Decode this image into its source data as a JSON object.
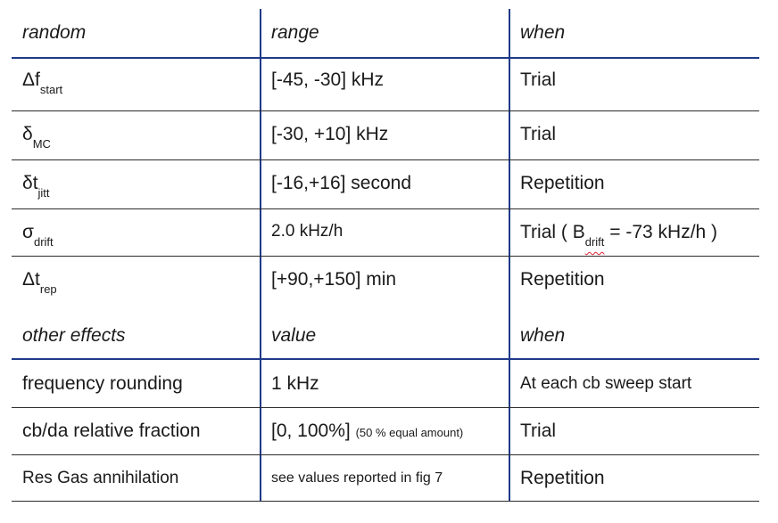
{
  "random_table": {
    "headers": [
      "random",
      "range",
      "when"
    ],
    "rows": [
      {
        "symbol": "Δf",
        "sub": "start",
        "range": "[-45, -30] kHz",
        "when": "Trial"
      },
      {
        "symbol": "δ",
        "sub": "MC",
        "range": "[-30, +10] kHz",
        "when": "Trial"
      },
      {
        "symbol": "δt",
        "sub": "jitt",
        "range": "[-16,+16] second",
        "when": "Repetition"
      },
      {
        "symbol": "σ",
        "sub": "drift",
        "range": "2.0 kHz/h",
        "when_prefix": "Trial ( B",
        "when_sub": "drift",
        "when_suffix": " = -73 kHz/h )"
      },
      {
        "symbol": "Δt",
        "sub": "rep",
        "range": "[+90,+150] min",
        "when": "Repetition"
      }
    ]
  },
  "other_table": {
    "headers": [
      "other effects",
      "value",
      "when"
    ],
    "rows": [
      {
        "effect": "frequency rounding",
        "value": "1 kHz",
        "when": "At each cb sweep start"
      },
      {
        "effect": "cb/da relative fraction",
        "value": "[0, 100%]",
        "value_note": "(50 % equal amount)",
        "when": "Trial"
      },
      {
        "effect": "Res Gas annihilation",
        "value": "see values reported in fig 7",
        "when": "Repetition"
      }
    ]
  },
  "colors": {
    "rule_blue": "#1f3a8a",
    "rule_gray": "#2b2b2b"
  }
}
